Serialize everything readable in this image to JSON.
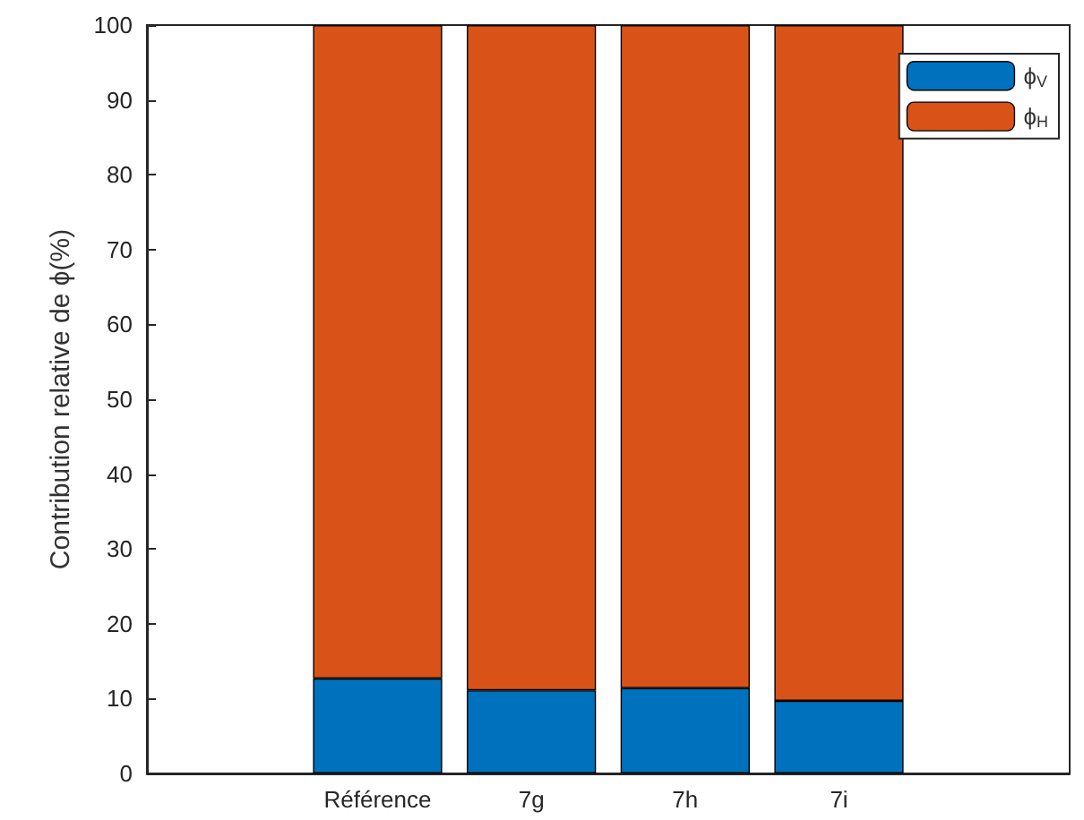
{
  "chart_data": {
    "type": "bar",
    "ylabel": "Contribution relative de ϕ(%)",
    "categories": [
      null,
      "Référence",
      "7g",
      "7h",
      "7i",
      null
    ],
    "stacked": true,
    "series": [
      {
        "name": "ϕ$_{V}$",
        "color": "#0072bd",
        "values": [
          null,
          12.7,
          11.1,
          11.4,
          9.7,
          null
        ]
      },
      {
        "name": "ϕ$_{H}$",
        "color": "#d95319",
        "values": [
          null,
          87.3,
          88.9,
          88.6,
          90.3,
          null
        ]
      }
    ],
    "ylim": [
      0,
      100
    ],
    "yticks": [
      0,
      10,
      20,
      30,
      40,
      50,
      60,
      70,
      80,
      90,
      100
    ],
    "grid": false,
    "legend": "top right"
  }
}
